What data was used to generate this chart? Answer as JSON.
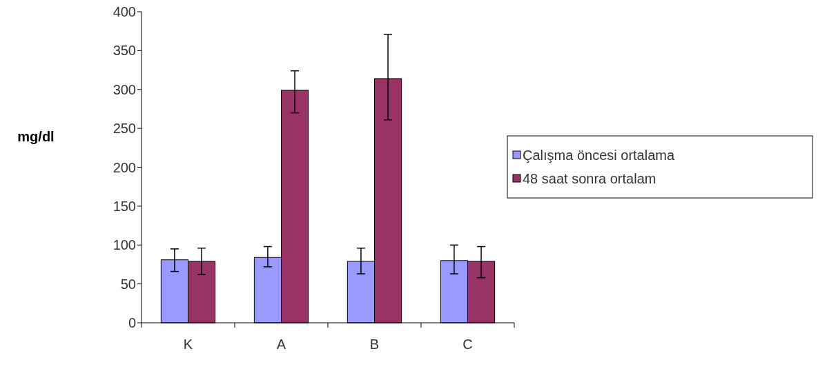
{
  "chart_data": {
    "type": "bar",
    "ylabel": "mg/dl",
    "categories": [
      "K",
      "A",
      "B",
      "C"
    ],
    "series": [
      {
        "name": "Çalışma öncesi ortalama",
        "color": "#9999ff",
        "values": [
          81,
          84,
          79,
          80
        ],
        "errors": [
          [
            66,
            95
          ],
          [
            72,
            98
          ],
          [
            63,
            96
          ],
          [
            63,
            100
          ]
        ]
      },
      {
        "name": "48 saat sonra ortalam",
        "color": "#993366",
        "values": [
          79,
          299,
          314,
          79
        ],
        "errors": [
          [
            62,
            96
          ],
          [
            270,
            324
          ],
          [
            261,
            371
          ],
          [
            58,
            98
          ]
        ]
      }
    ],
    "ylim": [
      0,
      400
    ],
    "yticks": [
      0,
      50,
      100,
      150,
      200,
      250,
      300,
      350,
      400
    ],
    "grid": false,
    "legend": "right"
  }
}
